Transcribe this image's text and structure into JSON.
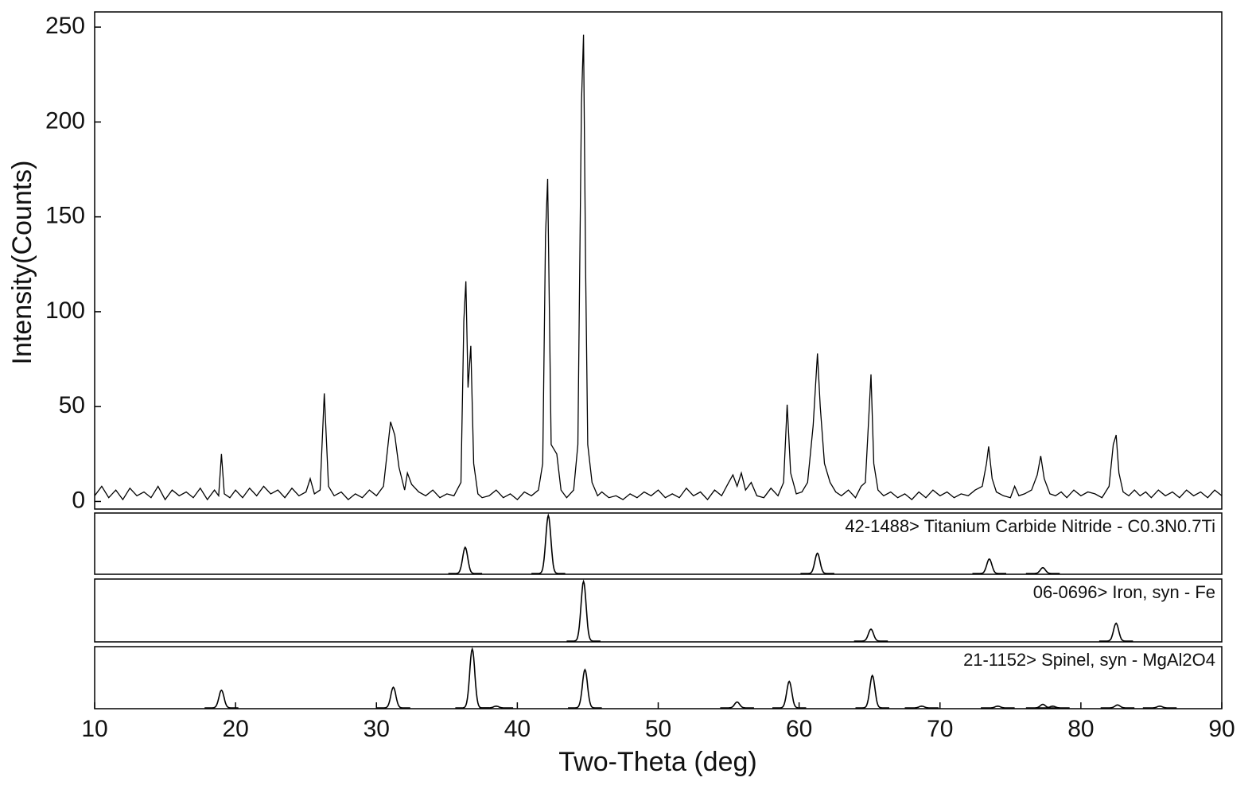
{
  "chart_data": {
    "type": "line",
    "xlabel": "Two-Theta (deg)",
    "ylabel": "Intensity(Counts)",
    "xlim": [
      10,
      90
    ],
    "xticks": [
      10,
      20,
      30,
      40,
      50,
      60,
      70,
      80,
      90
    ],
    "ylim": [
      -4,
      258
    ],
    "yticks": [
      0,
      50,
      100,
      150,
      200,
      250
    ],
    "x": [
      10,
      10.5,
      11,
      11.5,
      12,
      12.5,
      13,
      13.5,
      14,
      14.5,
      15,
      15.5,
      16,
      16.5,
      17,
      17.5,
      18,
      18.5,
      18.8,
      19.0,
      19.2,
      19.6,
      20,
      20.5,
      21,
      21.5,
      22,
      22.5,
      23,
      23.5,
      24,
      24.5,
      25,
      25.3,
      25.6,
      26,
      26.3,
      26.6,
      27,
      27.5,
      28,
      28.5,
      29,
      29.5,
      30,
      30.5,
      31.0,
      31.3,
      31.6,
      32,
      32.2,
      32.5,
      33,
      33.5,
      34,
      34.5,
      35,
      35.5,
      36,
      36.2,
      36.35,
      36.5,
      36.7,
      36.9,
      37.2,
      37.5,
      38,
      38.5,
      39,
      39.5,
      40,
      40.5,
      41,
      41.5,
      41.8,
      42.0,
      42.15,
      42.4,
      42.8,
      43.1,
      43.5,
      44,
      44.3,
      44.55,
      44.7,
      44.85,
      45.0,
      45.3,
      45.7,
      46,
      46.5,
      47,
      47.5,
      48,
      48.5,
      49,
      49.5,
      50,
      50.5,
      51,
      51.5,
      52,
      52.5,
      53,
      53.5,
      54,
      54.5,
      55,
      55.3,
      55.6,
      55.9,
      56.2,
      56.6,
      57,
      57.5,
      58,
      58.5,
      58.9,
      59.15,
      59.4,
      59.8,
      60.2,
      60.6,
      61.0,
      61.3,
      61.5,
      61.8,
      62.2,
      62.6,
      63,
      63.5,
      64,
      64.4,
      64.7,
      64.95,
      65.1,
      65.3,
      65.6,
      66,
      66.5,
      67,
      67.5,
      68,
      68.5,
      69,
      69.5,
      70,
      70.5,
      71,
      71.5,
      72,
      72.5,
      73.0,
      73.3,
      73.45,
      73.7,
      74,
      74.5,
      75,
      75.3,
      75.6,
      76,
      76.5,
      76.9,
      77.15,
      77.4,
      77.8,
      78.2,
      78.6,
      79,
      79.5,
      80,
      80.5,
      81,
      81.5,
      82,
      82.3,
      82.5,
      82.7,
      83,
      83.4,
      83.8,
      84.2,
      84.6,
      85,
      85.5,
      86,
      86.5,
      87,
      87.5,
      88,
      88.5,
      89,
      89.5,
      90
    ],
    "series": [
      {
        "color": "#000000",
        "values": [
          3,
          8,
          2,
          6,
          1,
          7,
          3,
          5,
          2,
          8,
          1,
          6,
          3,
          5,
          2,
          7,
          1,
          6,
          3,
          25,
          4,
          2,
          6,
          2,
          7,
          3,
          8,
          4,
          6,
          2,
          7,
          3,
          5,
          12,
          4,
          6,
          57,
          8,
          3,
          5,
          1,
          4,
          2,
          6,
          3,
          8,
          42,
          35,
          18,
          6,
          15,
          9,
          5,
          3,
          6,
          2,
          4,
          3,
          10,
          95,
          116,
          60,
          82,
          20,
          4,
          2,
          3,
          6,
          2,
          4,
          1,
          5,
          3,
          6,
          20,
          140,
          170,
          30,
          25,
          6,
          2,
          6,
          30,
          210,
          246,
          120,
          30,
          10,
          3,
          5,
          2,
          3,
          1,
          4,
          2,
          5,
          3,
          6,
          2,
          4,
          2,
          7,
          3,
          5,
          1,
          6,
          3,
          10,
          14,
          8,
          15,
          6,
          10,
          3,
          2,
          7,
          3,
          10,
          51,
          15,
          4,
          5,
          10,
          40,
          78,
          50,
          20,
          10,
          5,
          3,
          6,
          2,
          8,
          10,
          45,
          67,
          20,
          6,
          3,
          5,
          2,
          4,
          1,
          5,
          2,
          6,
          3,
          5,
          2,
          4,
          3,
          6,
          8,
          20,
          29,
          12,
          5,
          3,
          2,
          8,
          3,
          4,
          6,
          14,
          24,
          12,
          4,
          3,
          5,
          2,
          6,
          3,
          5,
          4,
          2,
          8,
          30,
          35,
          15,
          5,
          3,
          6,
          3,
          5,
          2,
          6,
          3,
          5,
          2,
          6,
          3,
          5,
          2,
          6,
          3
        ]
      }
    ],
    "reference_patterns": [
      {
        "name": "42-1488> Titanium Carbide Nitride - C0.3N0.7Ti",
        "x": [
          36.3,
          42.2,
          61.3,
          73.5,
          77.3
        ],
        "values": [
          45,
          100,
          35,
          25,
          10
        ]
      },
      {
        "name": "06-0696> Iron, syn - Fe",
        "x": [
          44.7,
          65.1,
          82.5
        ],
        "values": [
          100,
          20,
          30
        ]
      },
      {
        "name": "21-1152> Spinel, syn - MgAl2O4",
        "x": [
          19.0,
          31.2,
          36.8,
          38.5,
          44.8,
          55.6,
          59.3,
          65.2,
          68.7,
          74.1,
          77.3,
          78.0,
          82.6,
          85.6
        ],
        "values": [
          30,
          35,
          100,
          3,
          65,
          10,
          45,
          55,
          3,
          3,
          6,
          3,
          5,
          3
        ]
      }
    ]
  }
}
